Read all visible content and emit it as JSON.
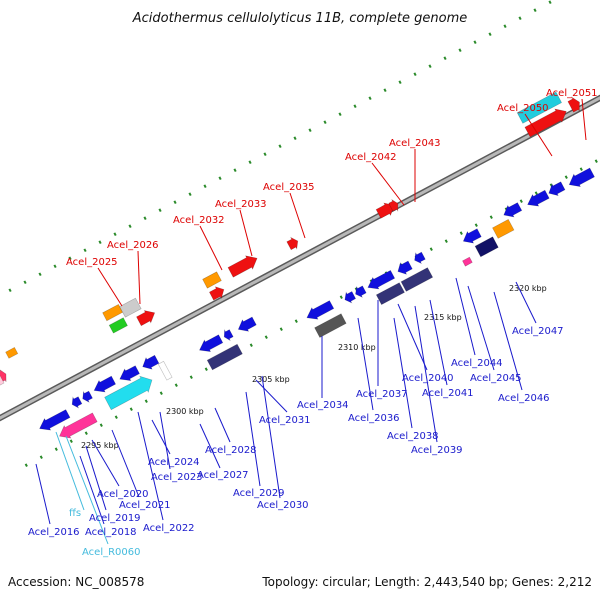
{
  "title": "Acidothermus cellulolyticus 11B, complete genome",
  "footer": {
    "accession": "Accession: NC_008578",
    "summary": "Topology: circular; Length: 2,443,540 bp; Genes: 2,212"
  },
  "colors": {
    "backbone": "#8a8a8a",
    "forward_label": "#dd0000",
    "reverse_label": "#1a1acc",
    "rna_label": "#44bbdd",
    "tick": "#2a8a2a"
  },
  "ticks": [
    "2295 kbp",
    "2300 kbp",
    "2305 kbp",
    "2310 kbp",
    "2315 kbp",
    "2320 kbp"
  ],
  "forward_labels": [
    "Acel_2025",
    "Acel_2026",
    "Acel_2032",
    "Acel_2033",
    "Acel_2035",
    "Acel_2042",
    "Acel_2043",
    "Acel_2050",
    "Acel_2051"
  ],
  "reverse_labels": [
    "Acel_2016",
    "Acel_2018",
    "Acel_2019",
    "Acel_2020",
    "Acel_2021",
    "Acel_2022",
    "Acel_2023",
    "Acel_2024",
    "Acel_2027",
    "Acel_2028",
    "Acel_2029",
    "Acel_2030",
    "Acel_2031",
    "Acel_2034",
    "Acel_2036",
    "Acel_2037",
    "Acel_2038",
    "Acel_2039",
    "Acel_2040",
    "Acel_2041",
    "Acel_2044",
    "Acel_2045",
    "Acel_2046",
    "Acel_2047"
  ],
  "rna_labels": [
    "ffs",
    "Acel_R0060"
  ]
}
